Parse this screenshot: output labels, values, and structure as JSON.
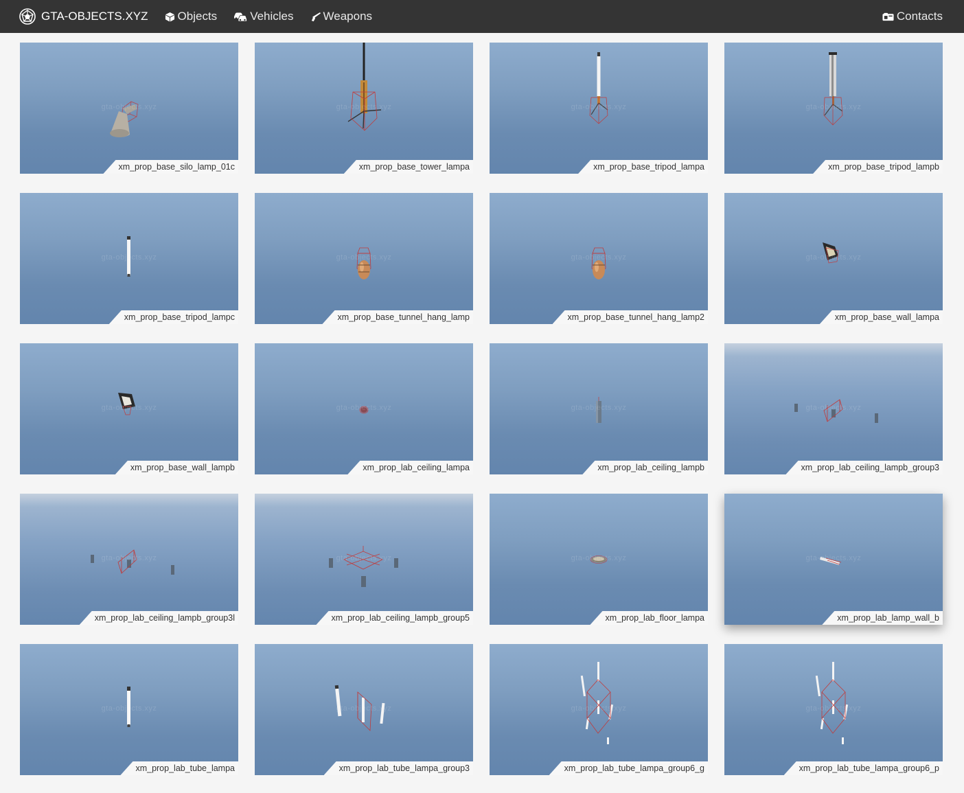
{
  "nav": {
    "brand": "GTA-OBJECTS.XYZ",
    "objects": "Objects",
    "vehicles": "Vehicles",
    "weapons": "Weapons",
    "contacts": "Contacts"
  },
  "watermark": "gta-objects.xyz",
  "items": [
    {
      "name": "xm_prop_base_silo_lamp_01c"
    },
    {
      "name": "xm_prop_base_tower_lampa"
    },
    {
      "name": "xm_prop_base_tripod_lampa"
    },
    {
      "name": "xm_prop_base_tripod_lampb"
    },
    {
      "name": "xm_prop_base_tripod_lampc"
    },
    {
      "name": "xm_prop_base_tunnel_hang_lamp"
    },
    {
      "name": "xm_prop_base_tunnel_hang_lamp2"
    },
    {
      "name": "xm_prop_base_wall_lampa"
    },
    {
      "name": "xm_prop_base_wall_lampb"
    },
    {
      "name": "xm_prop_lab_ceiling_lampa"
    },
    {
      "name": "xm_prop_lab_ceiling_lampb"
    },
    {
      "name": "xm_prop_lab_ceiling_lampb_group3"
    },
    {
      "name": "xm_prop_lab_ceiling_lampb_group3l"
    },
    {
      "name": "xm_prop_lab_ceiling_lampb_group5"
    },
    {
      "name": "xm_prop_lab_floor_lampa"
    },
    {
      "name": "xm_prop_lab_lamp_wall_b"
    },
    {
      "name": "xm_prop_lab_tube_lampa"
    },
    {
      "name": "xm_prop_lab_tube_lampa_group3"
    },
    {
      "name": "xm_prop_lab_tube_lampa_group6_g"
    },
    {
      "name": "xm_prop_lab_tube_lampa_group6_p"
    }
  ]
}
